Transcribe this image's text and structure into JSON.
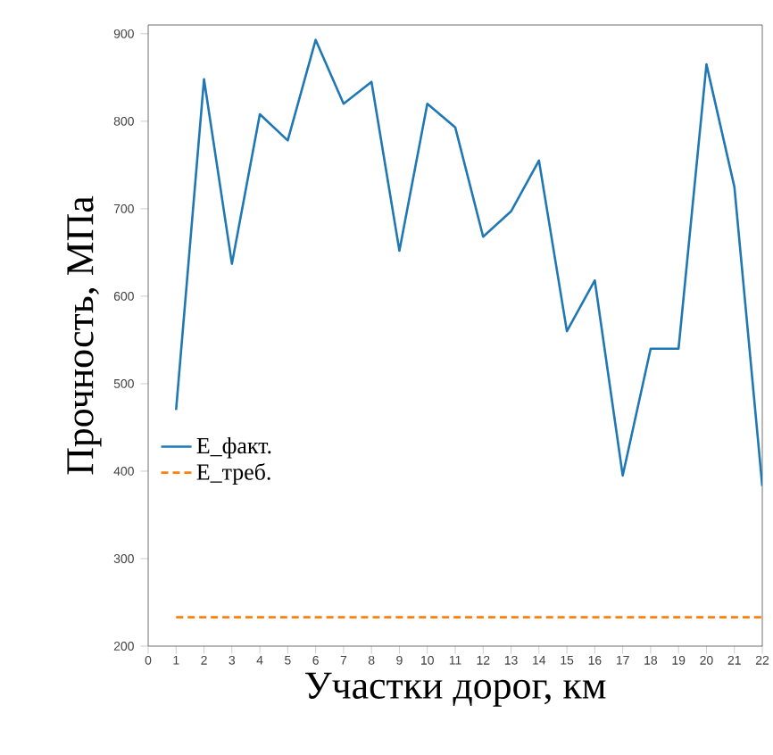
{
  "chart_data": {
    "type": "line",
    "xlabel": "Участки дорог, км",
    "ylabel": "Прочность, МПа",
    "x": [
      1,
      2,
      3,
      4,
      5,
      6,
      7,
      8,
      9,
      10,
      11,
      12,
      13,
      14,
      15,
      16,
      17,
      18,
      19,
      20,
      21,
      22
    ],
    "series": [
      {
        "name": "E_факт.",
        "color": "#1f77b4",
        "line_style": "solid",
        "values": [
          470,
          848,
          637,
          808,
          778,
          893,
          820,
          845,
          652,
          820,
          793,
          668,
          697,
          755,
          560,
          618,
          395,
          540,
          540,
          865,
          725,
          383
        ]
      },
      {
        "name": "E_треб.",
        "color": "#ff7f0e",
        "line_style": "dashed",
        "values": [
          233,
          233,
          233,
          233,
          233,
          233,
          233,
          233,
          233,
          233,
          233,
          233,
          233,
          233,
          233,
          233,
          233,
          233,
          233,
          233,
          233,
          233
        ]
      }
    ],
    "xlim": [
      0,
      22
    ],
    "ylim": [
      200,
      910
    ],
    "xticks": [
      0,
      1,
      2,
      3,
      4,
      5,
      6,
      7,
      8,
      9,
      10,
      11,
      12,
      13,
      14,
      15,
      16,
      17,
      18,
      19,
      20,
      21,
      22
    ],
    "yticks": [
      200,
      300,
      400,
      500,
      600,
      700,
      800,
      900
    ],
    "legend": "center left",
    "grid": false,
    "marker": "none"
  }
}
